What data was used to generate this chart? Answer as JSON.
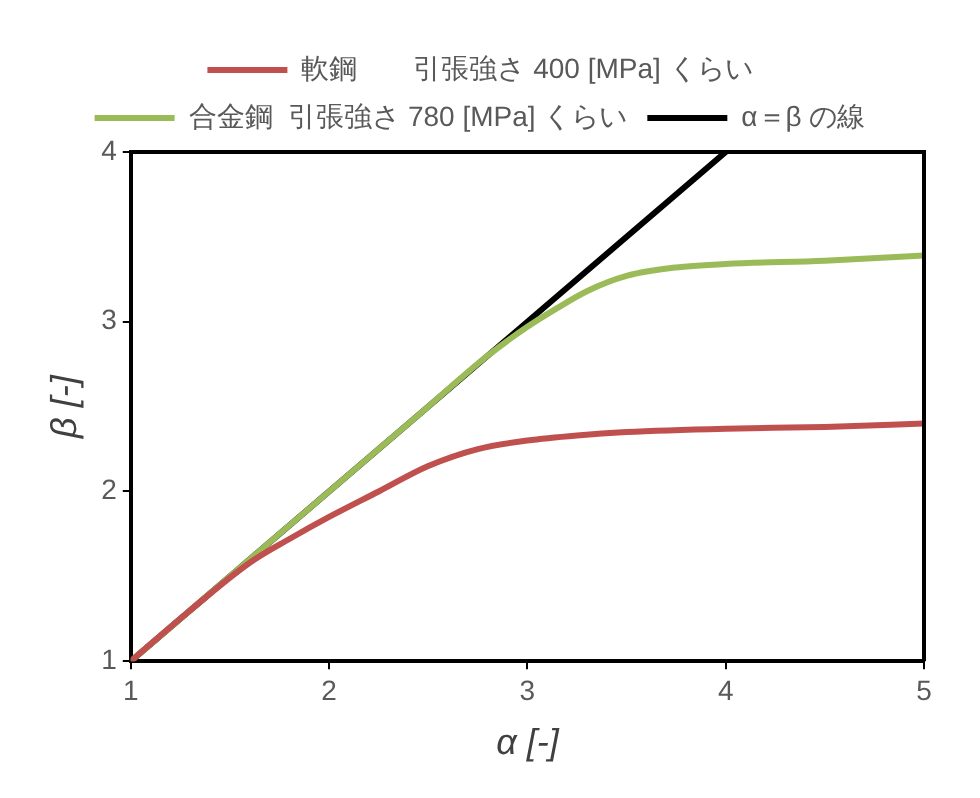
{
  "chart_data": {
    "type": "line",
    "xlabel": "α [-]",
    "ylabel": "β [-]",
    "xlim": [
      1,
      5
    ],
    "xticks": [
      1,
      2,
      3,
      4,
      5
    ],
    "ylim": [
      1,
      4
    ],
    "yticks": [
      1,
      2,
      3,
      4
    ],
    "grid": false,
    "legend": "top",
    "marker": "none",
    "line_style": "solid",
    "series": [
      {
        "name": "軟鋼　　引張強さ 400 [MPa] くらい",
        "color": "#c0504d",
        "x": [
          1,
          1.3,
          1.6,
          1.8,
          2,
          2.25,
          2.5,
          2.75,
          3,
          3.25,
          3.5,
          4,
          4.5,
          5
        ],
        "values": [
          1,
          1.3,
          1.58,
          1.72,
          1.85,
          2.0,
          2.15,
          2.25,
          2.3,
          2.33,
          2.35,
          2.37,
          2.38,
          2.4
        ]
      },
      {
        "name": "合金鋼  引張強さ 780 [MPa] くらい",
        "color": "#9bbb59",
        "x": [
          1,
          1.5,
          2,
          2.5,
          2.8,
          3,
          3.15,
          3.3,
          3.5,
          3.75,
          4,
          4.5,
          5
        ],
        "values": [
          1,
          1.5,
          2,
          2.5,
          2.8,
          2.97,
          3.08,
          3.18,
          3.27,
          3.32,
          3.34,
          3.36,
          3.39
        ]
      },
      {
        "name": "α＝β の線",
        "color": "#000000",
        "x": [
          1,
          4
        ],
        "values": [
          1,
          4
        ]
      }
    ]
  }
}
